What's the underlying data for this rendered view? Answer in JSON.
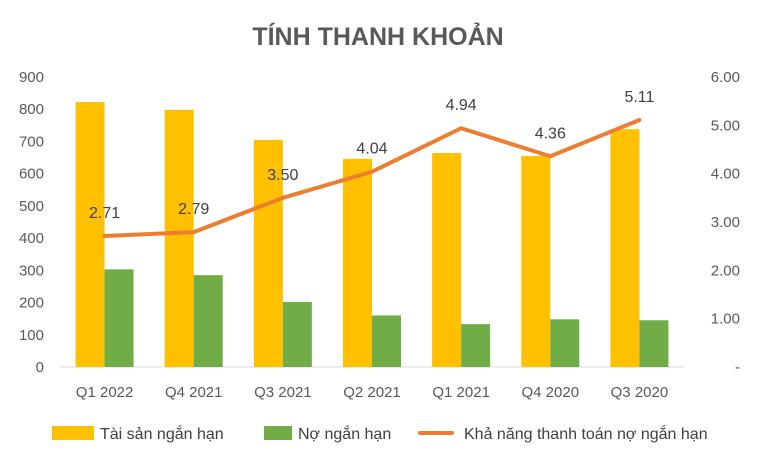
{
  "chart_data": {
    "type": "bar",
    "title": "TÍNH THANH KHOẢN",
    "categories": [
      "Q1 2022",
      "Q4 2021",
      "Q3 2021",
      "Q2 2021",
      "Q1 2021",
      "Q4 2020",
      "Q3 2020"
    ],
    "series": [
      {
        "name": "Tài sản ngắn hạn",
        "type": "bar",
        "axis": "left",
        "color": "#FFC000",
        "values": [
          822,
          798,
          705,
          646,
          664,
          655,
          738
        ]
      },
      {
        "name": "Nợ ngắn hạn",
        "type": "bar",
        "axis": "left",
        "color": "#70AD47",
        "values": [
          303,
          285,
          202,
          160,
          133,
          148,
          145
        ]
      },
      {
        "name": "Khả năng thanh toán nợ ngắn hạn",
        "type": "line",
        "axis": "right",
        "color": "#ED7D31",
        "values": [
          2.71,
          2.79,
          3.5,
          4.04,
          4.94,
          4.36,
          5.11
        ],
        "labels": [
          "2.71",
          "2.79",
          "3.50",
          "4.04",
          "4.94",
          "4.36",
          "5.11"
        ]
      }
    ],
    "y_left": {
      "ylim": [
        0,
        900
      ],
      "ticks": [
        {
          "v": 0,
          "t": "0"
        },
        {
          "v": 100,
          "t": "100"
        },
        {
          "v": 200,
          "t": "200"
        },
        {
          "v": 300,
          "t": "300"
        },
        {
          "v": 400,
          "t": "400"
        },
        {
          "v": 500,
          "t": "500"
        },
        {
          "v": 600,
          "t": "600"
        },
        {
          "v": 700,
          "t": "700"
        },
        {
          "v": 800,
          "t": "800"
        },
        {
          "v": 900,
          "t": "900"
        }
      ]
    },
    "y_right": {
      "ylim": [
        0,
        6
      ],
      "ticks": [
        {
          "v": 0,
          "t": "-"
        },
        {
          "v": 1,
          "t": "1.00"
        },
        {
          "v": 2,
          "t": "2.00"
        },
        {
          "v": 3,
          "t": "3.00"
        },
        {
          "v": 4,
          "t": "4.00"
        },
        {
          "v": 5,
          "t": "5.00"
        },
        {
          "v": 6,
          "t": "6.00"
        }
      ]
    },
    "grid": false,
    "legend_position": "bottom"
  }
}
